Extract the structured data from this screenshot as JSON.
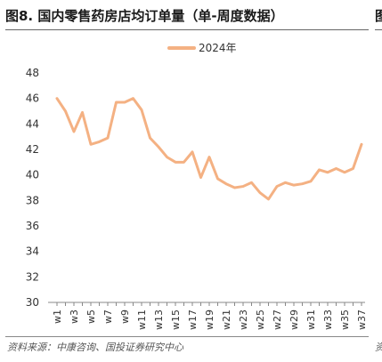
{
  "header": {
    "title": "图8. 国内零售药房店均订单量（单-周度数据）",
    "edge_glyph_top": "图"
  },
  "footer": {
    "source": "资料来源：中康咨询、国投证券研究中心",
    "edge_glyph_bottom": "资"
  },
  "colors": {
    "line": "#F4B183",
    "axis": "#888888",
    "text": "#333333"
  },
  "chart_data": {
    "type": "line",
    "title": "图8. 国内零售药房店均订单量（单-周度数据）",
    "xlabel": "",
    "ylabel": "",
    "ylim": [
      30,
      48
    ],
    "yticks": [
      30,
      32,
      34,
      36,
      38,
      40,
      42,
      44,
      46,
      48
    ],
    "grid": false,
    "legend_position": "top-center",
    "x": [
      "w1",
      "w2",
      "w3",
      "w4",
      "w5",
      "w6",
      "w7",
      "w8",
      "w9",
      "w10",
      "w11",
      "w12",
      "w13",
      "w14",
      "w15",
      "w16",
      "w17",
      "w18",
      "w19",
      "w20",
      "w21",
      "w22",
      "w23",
      "w24",
      "w25",
      "w26",
      "w27",
      "w28",
      "w29",
      "w30",
      "w31",
      "w32",
      "w33",
      "w34",
      "w35",
      "w36",
      "w37"
    ],
    "series": [
      {
        "name": "2024年",
        "values": [
          46.0,
          45.0,
          43.4,
          44.9,
          42.4,
          42.6,
          42.9,
          45.7,
          45.7,
          46.0,
          45.1,
          42.9,
          42.2,
          41.4,
          41.0,
          41.0,
          41.8,
          39.8,
          41.4,
          39.7,
          39.3,
          39.0,
          39.1,
          39.4,
          38.6,
          38.1,
          39.1,
          39.4,
          39.2,
          39.3,
          39.5,
          40.4,
          40.2,
          40.5,
          40.2,
          40.5,
          42.4
        ]
      }
    ],
    "xtick_labels": [
      "w1",
      "w3",
      "w5",
      "w7",
      "w9",
      "w11",
      "w13",
      "w15",
      "w17",
      "w19",
      "w21",
      "w23",
      "w25",
      "w27",
      "w29",
      "w31",
      "w33",
      "w35",
      "w37"
    ]
  }
}
